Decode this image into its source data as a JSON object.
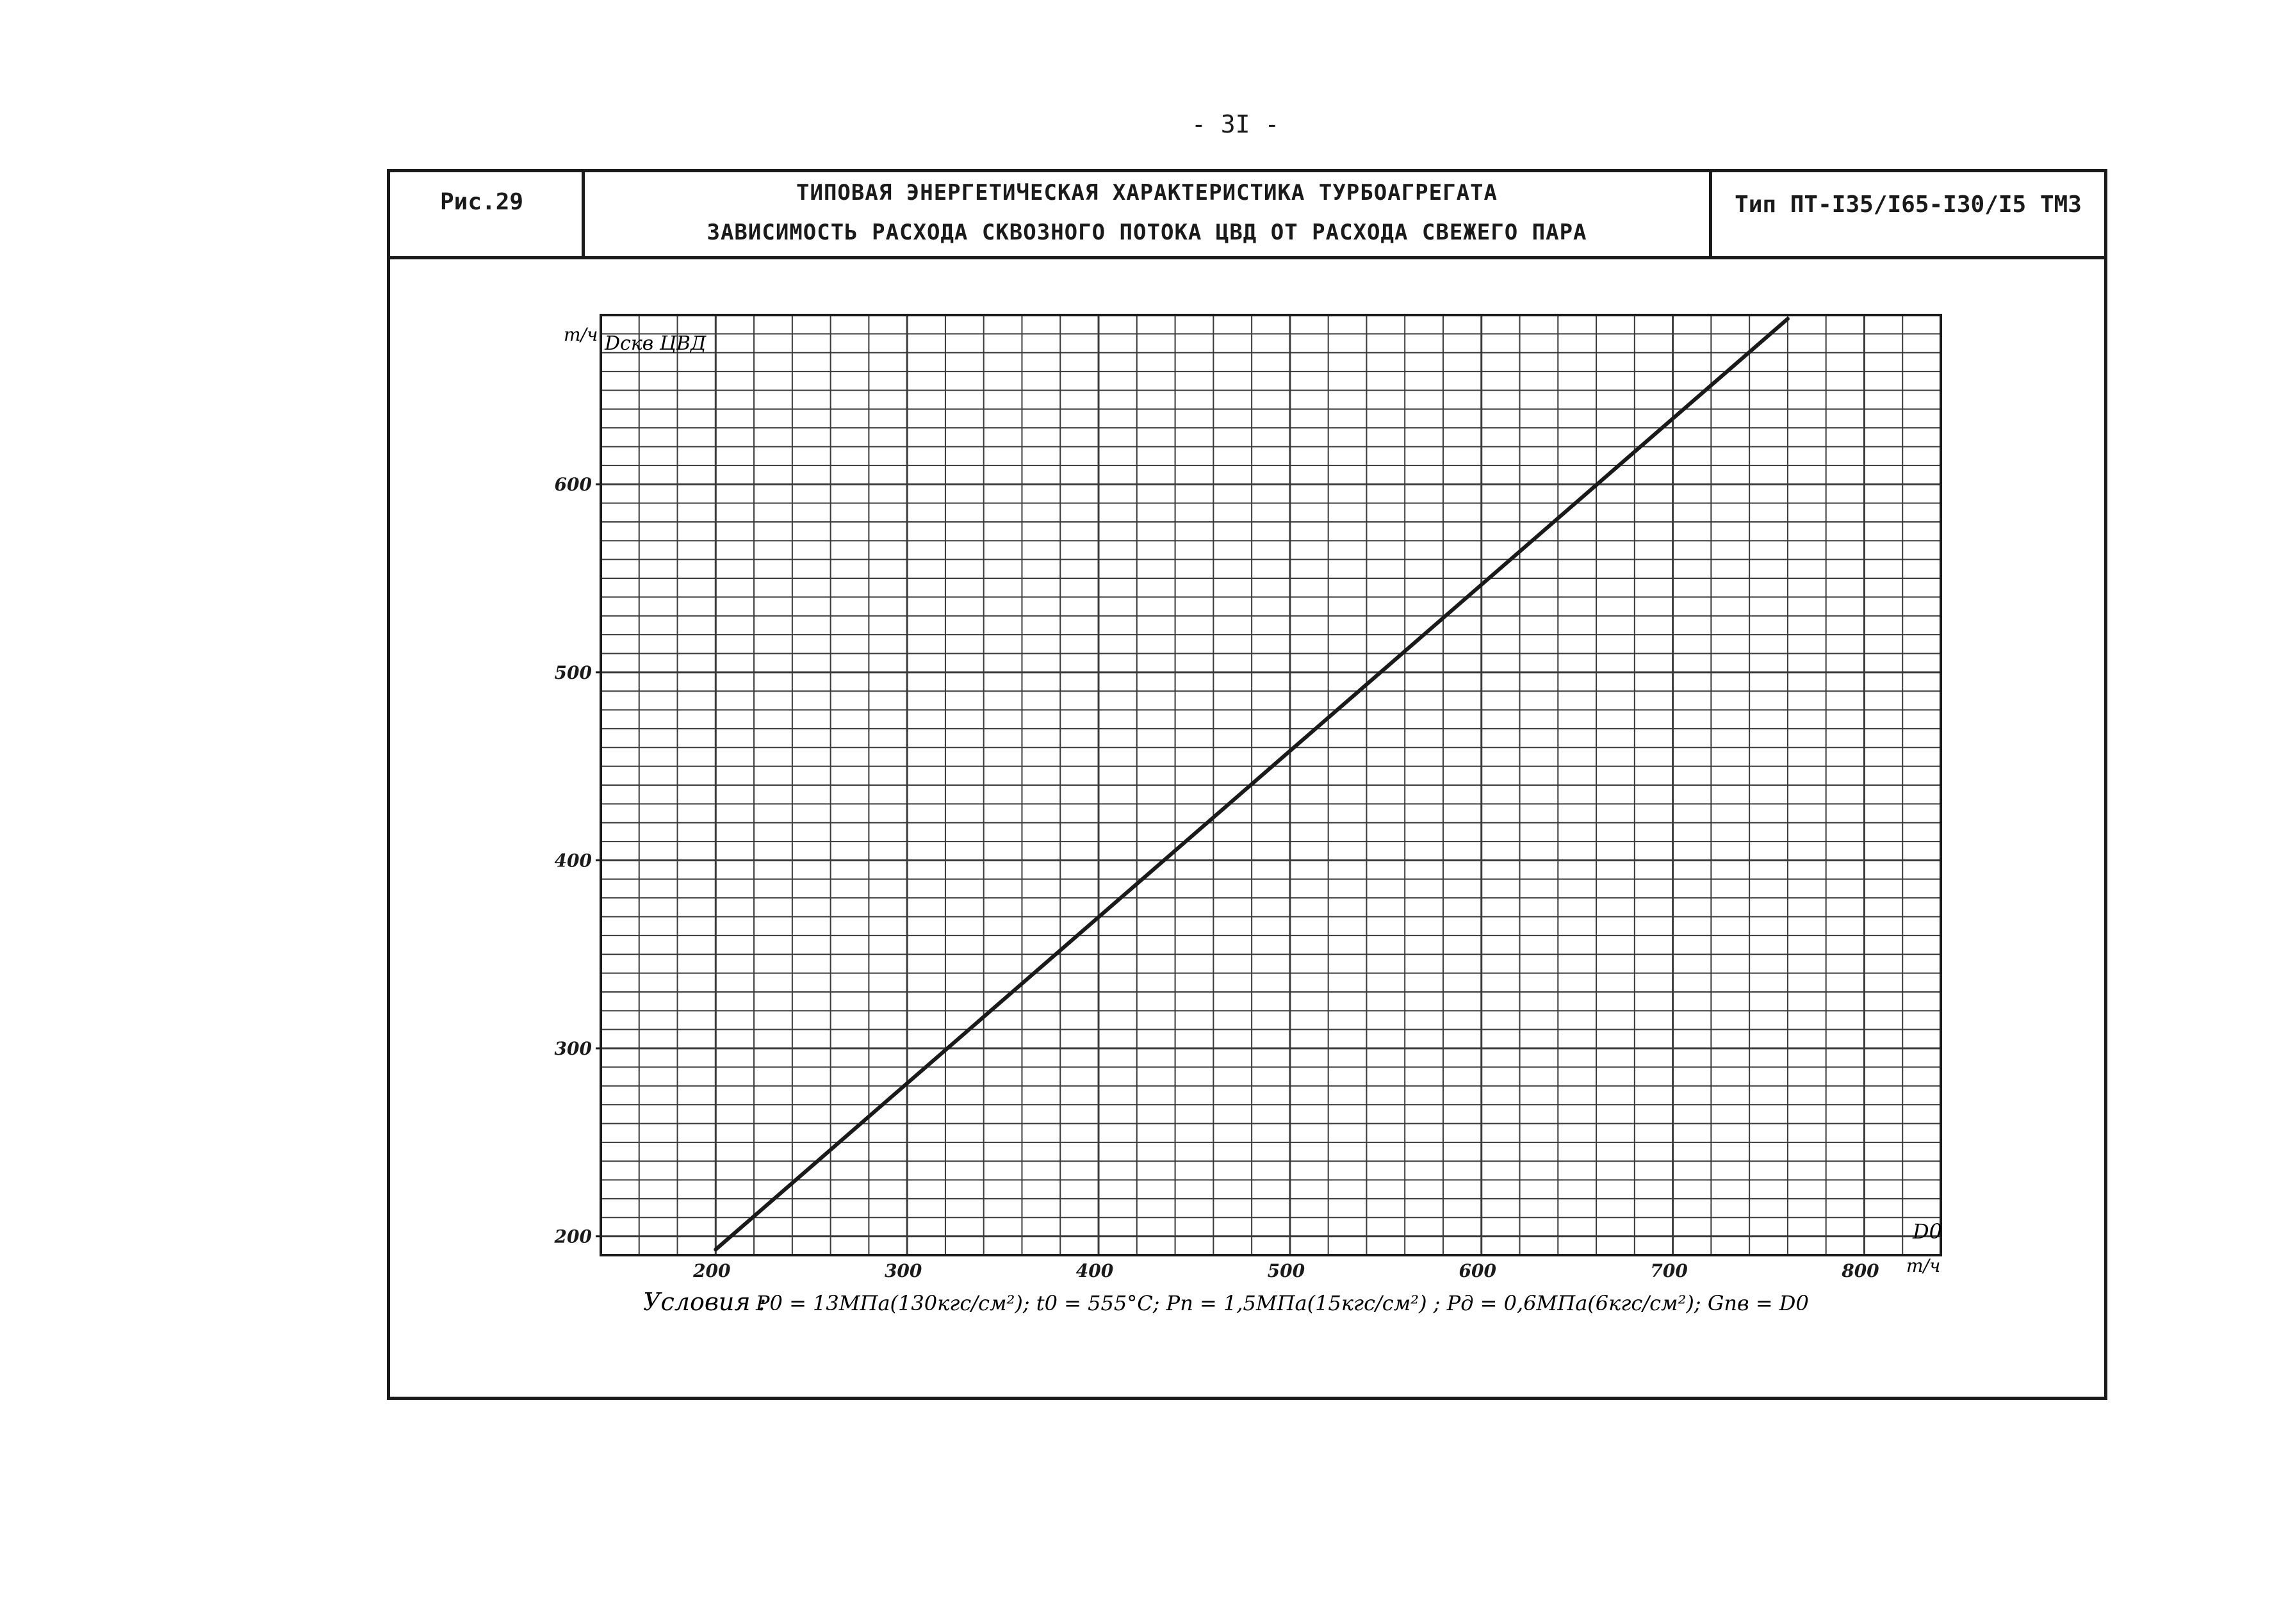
{
  "page_number": "- 3I -",
  "header": {
    "figure_label": "Рис.29",
    "title_line1": "ТИПОВАЯ ЭНЕРГЕТИЧЕСКАЯ ХАРАКТЕРИСТИКА ТУРБОАГРЕГАТА",
    "title_line2": "ЗАВИСИМОСТЬ РАСХОДА СКВОЗНОГО ПОТОКА ЦВД ОТ РАСХОДА СВЕЖЕГО ПАРА",
    "type_label": "Тип ПТ-I35/I65-I30/I5 ТМЗ"
  },
  "chart_data": {
    "type": "line",
    "title": "ЗАВИСИМОСТЬ РАСХОДА СКВОЗНОГО ПОТОКА ЦВД ОТ РАСХОДА СВЕЖЕГО ПАРА",
    "xlabel": "D0",
    "xunit": "т/ч",
    "ylabel": "Dскв ЦВД",
    "yunit": "т/ч",
    "xlim": [
      140,
      840
    ],
    "ylim": [
      190,
      690
    ],
    "xticks": [
      "200",
      "300",
      "400",
      "500",
      "600",
      "700",
      "800"
    ],
    "yticks": [
      "200",
      "300",
      "400",
      "500",
      "600"
    ],
    "grid": true,
    "series": [
      {
        "x": [
          200,
          760
        ],
        "y": [
          193,
          688
        ]
      }
    ]
  },
  "conditions": {
    "label": "Условия :",
    "text": "P0 = 13МПа(130кгс/см²);  t0 = 555°С;  Pп = 1,5МПа(15кгс/см²) ;  Pд = 0,6МПа(6кгс/см²);  Gпв = D0"
  },
  "colors": {
    "ink": "#1a1a1a",
    "grid": "#3a3a3a",
    "paper": "#ffffff"
  }
}
